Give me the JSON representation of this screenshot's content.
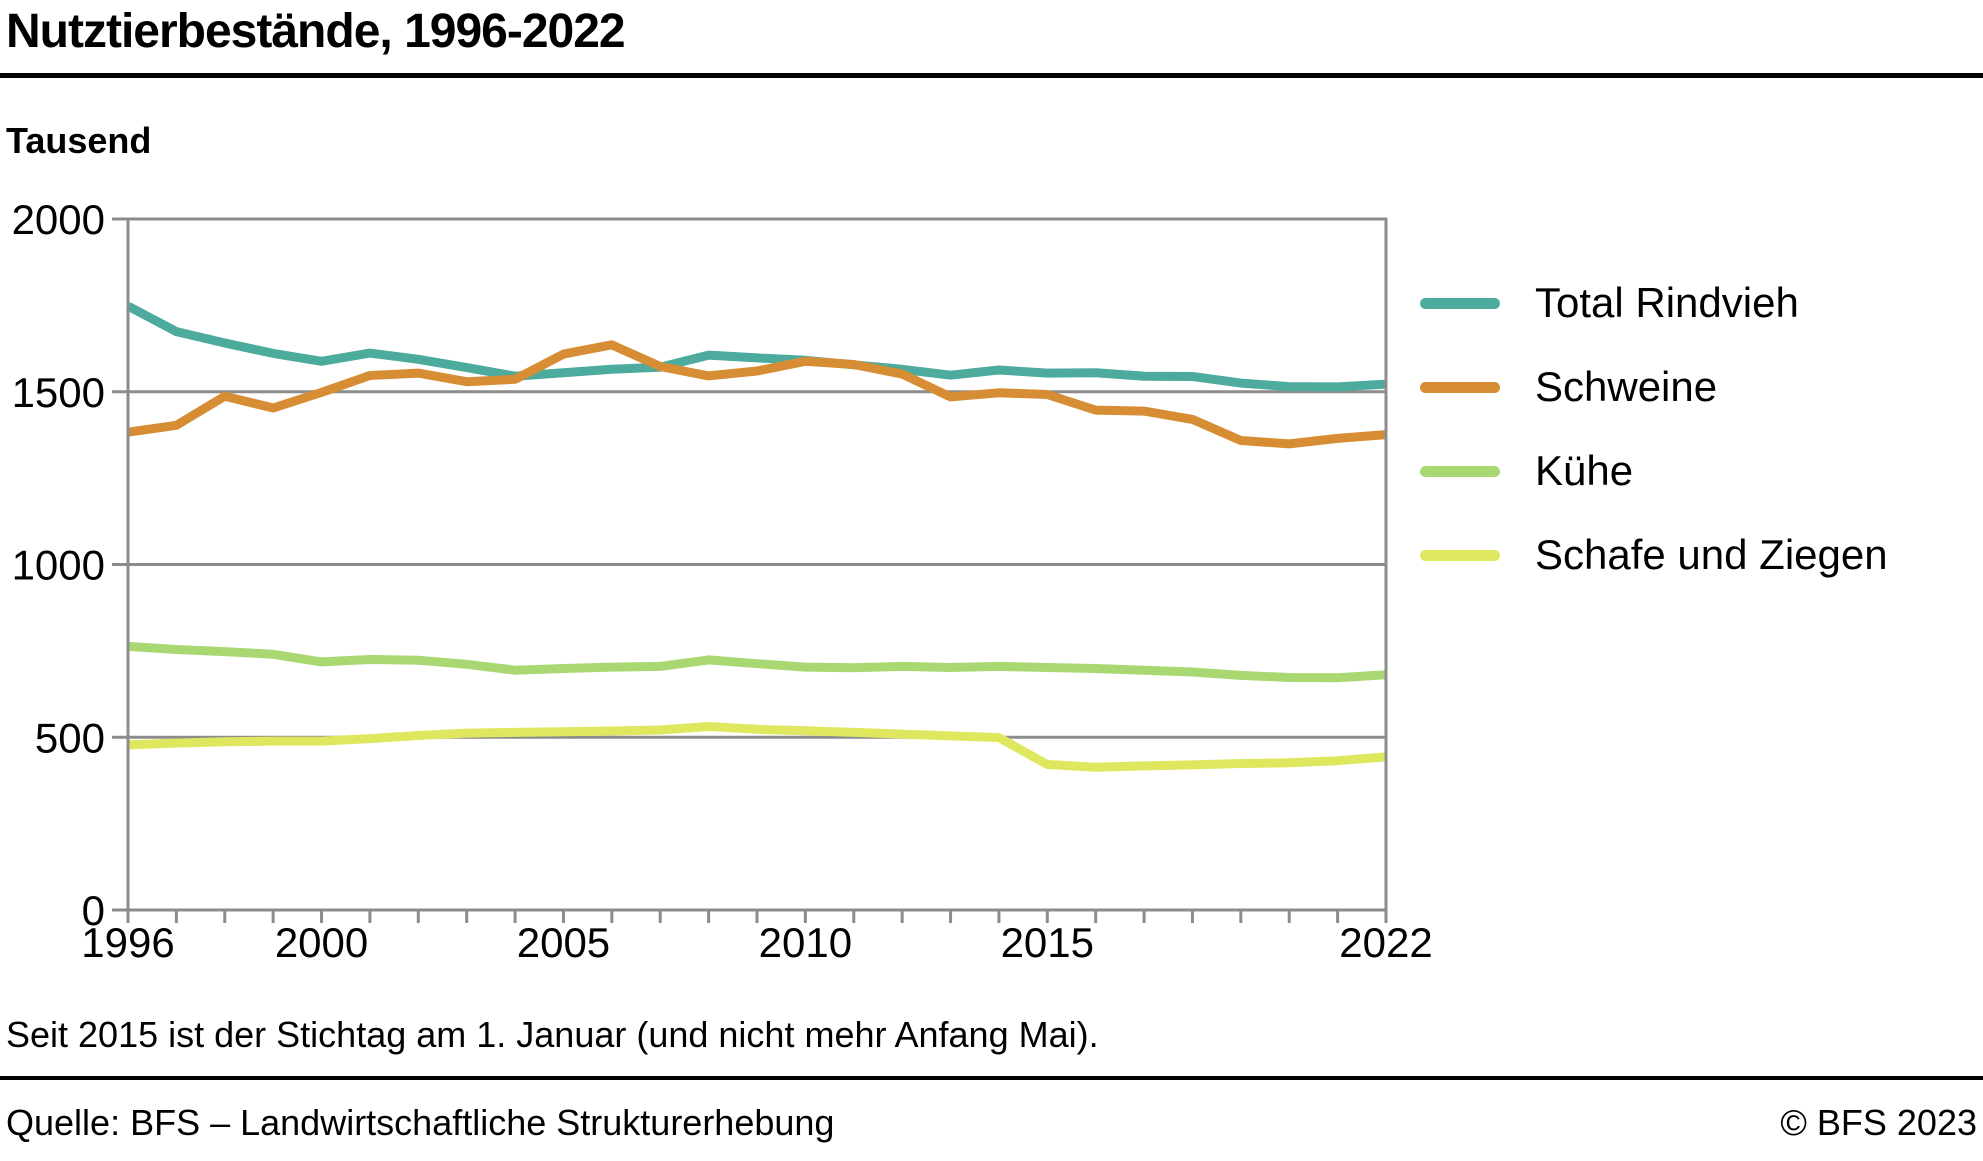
{
  "page": {
    "title": "Nutztierbestände, 1996-2022",
    "unit_label": "Tausend",
    "footnote": "Seit 2015 ist der Stichtag am 1. Januar (und nicht mehr Anfang Mai).",
    "source": "Quelle: BFS – Landwirtschaftliche Strukturerhebung",
    "copyright": "© BFS 2023"
  },
  "colors": {
    "grid": "#8c8c8c",
    "axis": "#8c8c8c",
    "text": "#000000",
    "rule": "#000000"
  },
  "chart_data": {
    "type": "line",
    "title": "Nutztierbestände, 1996-2022",
    "ylabel": "Tausend",
    "xlabel": "",
    "ylim": [
      0,
      2000
    ],
    "yticks": [
      0,
      500,
      1000,
      1500,
      2000
    ],
    "xtick_labels": [
      1996,
      2000,
      2005,
      2010,
      2015,
      2022
    ],
    "grid": true,
    "legend_position": "right",
    "x": [
      1996,
      1997,
      1998,
      1999,
      2000,
      2001,
      2002,
      2003,
      2004,
      2005,
      2006,
      2007,
      2008,
      2009,
      2010,
      2011,
      2012,
      2013,
      2014,
      2015,
      2016,
      2017,
      2018,
      2019,
      2020,
      2021,
      2022
    ],
    "series": [
      {
        "name": "Total Rindvieh",
        "color": "#4dab9e",
        "values": [
          1748,
          1674,
          1641,
          1611,
          1588,
          1612,
          1594,
          1570,
          1545,
          1555,
          1565,
          1571,
          1606,
          1598,
          1591,
          1578,
          1565,
          1548,
          1563,
          1554,
          1555,
          1545,
          1544,
          1525,
          1515,
          1514,
          1522
        ]
      },
      {
        "name": "Schweine",
        "color": "#d78d33",
        "values": [
          1383,
          1403,
          1487,
          1453,
          1498,
          1547,
          1554,
          1529,
          1536,
          1609,
          1636,
          1573,
          1546,
          1560,
          1588,
          1579,
          1551,
          1485,
          1497,
          1492,
          1447,
          1444,
          1420,
          1359,
          1349,
          1365,
          1376
        ]
      },
      {
        "name": "Kühe",
        "color": "#a9d873",
        "values": [
          763,
          754,
          748,
          740,
          718,
          725,
          723,
          711,
          694,
          699,
          703,
          705,
          724,
          713,
          703,
          701,
          705,
          702,
          705,
          702,
          699,
          694,
          689,
          679,
          673,
          672,
          681
        ]
      },
      {
        "name": "Schafe und Ziegen",
        "color": "#dfe75e",
        "values": [
          478,
          483,
          487,
          489,
          489,
          496,
          505,
          512,
          514,
          516,
          518,
          521,
          531,
          523,
          519,
          514,
          509,
          504,
          499,
          421,
          413,
          417,
          420,
          424,
          426,
          432,
          443
        ]
      }
    ]
  }
}
